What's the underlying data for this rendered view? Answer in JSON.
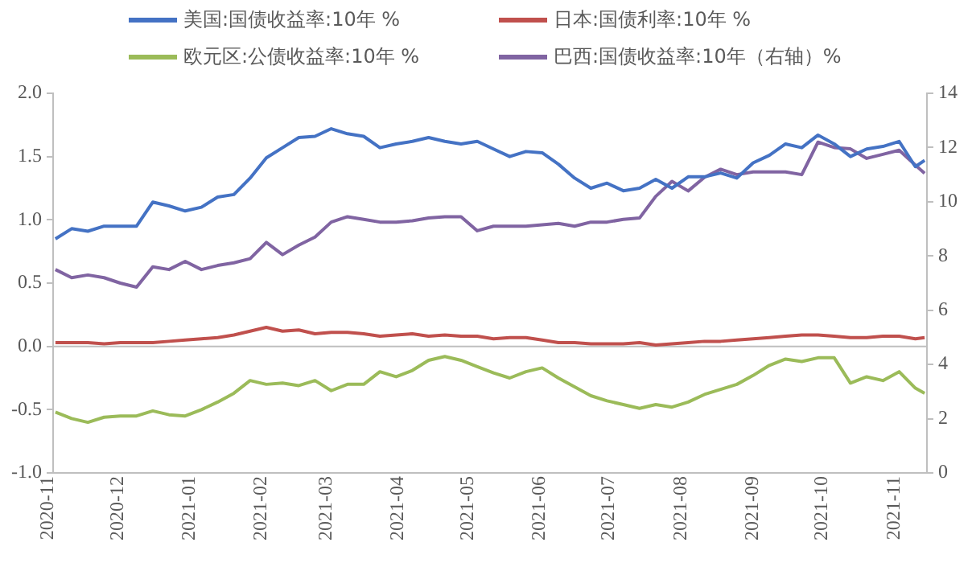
{
  "chart_data": {
    "type": "line",
    "legend": "top",
    "grid": false,
    "marker": "none",
    "line_style": "solid",
    "xlim": [
      "2020-11-01",
      "2021-11-13"
    ],
    "xticks": [
      "2020-11",
      "2020-12",
      "2021-01",
      "2021-02",
      "2021-03",
      "2021-04",
      "2021-05",
      "2021-06",
      "2021-07",
      "2021-08",
      "2021-09",
      "2021-10",
      "2021-11"
    ],
    "ylim": [
      -1,
      2
    ],
    "yticks": [
      {
        "value": -1,
        "label": "-1.0"
      },
      {
        "value": -0.5,
        "label": "-0.5"
      },
      {
        "value": 0,
        "label": "0.0"
      },
      {
        "value": 0.5,
        "label": "0.5"
      },
      {
        "value": 1,
        "label": "1.0"
      },
      {
        "value": 1.5,
        "label": "1.5"
      },
      {
        "value": 2,
        "label": "2.0"
      }
    ],
    "ref_lines": [
      {
        "axis": "y",
        "value": 0,
        "color": "#bfbfbf"
      }
    ],
    "y2lim": [
      0,
      14
    ],
    "y2ticks": [
      0,
      2,
      4,
      6,
      8,
      10,
      12,
      14
    ],
    "x": [
      "2020-11-02",
      "2020-11-09",
      "2020-11-16",
      "2020-11-23",
      "2020-11-30",
      "2020-12-07",
      "2020-12-14",
      "2020-12-21",
      "2020-12-28",
      "2021-01-04",
      "2021-01-11",
      "2021-01-18",
      "2021-01-25",
      "2021-02-01",
      "2021-02-08",
      "2021-02-15",
      "2021-02-22",
      "2021-03-01",
      "2021-03-08",
      "2021-03-15",
      "2021-03-22",
      "2021-03-29",
      "2021-04-05",
      "2021-04-12",
      "2021-04-19",
      "2021-04-26",
      "2021-05-03",
      "2021-05-10",
      "2021-05-17",
      "2021-05-24",
      "2021-05-31",
      "2021-06-07",
      "2021-06-14",
      "2021-06-21",
      "2021-06-28",
      "2021-07-05",
      "2021-07-12",
      "2021-07-19",
      "2021-07-26",
      "2021-08-02",
      "2021-08-09",
      "2021-08-16",
      "2021-08-23",
      "2021-08-30",
      "2021-09-06",
      "2021-09-13",
      "2021-09-20",
      "2021-09-27",
      "2021-10-04",
      "2021-10-11",
      "2021-10-18",
      "2021-10-25",
      "2021-11-01",
      "2021-11-08",
      "2021-11-12"
    ],
    "series": [
      {
        "name": "美国:国债收益率:10年 %",
        "color": "#4472c4",
        "values": [
          0.85,
          0.93,
          0.91,
          0.95,
          0.95,
          0.95,
          1.14,
          1.11,
          1.07,
          1.1,
          1.18,
          1.2,
          1.33,
          1.49,
          1.57,
          1.65,
          1.66,
          1.72,
          1.68,
          1.66,
          1.57,
          1.6,
          1.62,
          1.65,
          1.62,
          1.6,
          1.62,
          1.56,
          1.5,
          1.54,
          1.53,
          1.44,
          1.33,
          1.25,
          1.29,
          1.23,
          1.25,
          1.32,
          1.25,
          1.34,
          1.34,
          1.37,
          1.33,
          1.45,
          1.51,
          1.6,
          1.57,
          1.67,
          1.6,
          1.5,
          1.56,
          1.58,
          1.62,
          1.42,
          1.47
        ]
      },
      {
        "name": "日本:国债利率:10年 %",
        "color": "#c0504d",
        "values": [
          0.03,
          0.03,
          0.03,
          0.02,
          0.03,
          0.03,
          0.03,
          0.04,
          0.05,
          0.06,
          0.07,
          0.09,
          0.12,
          0.15,
          0.12,
          0.13,
          0.1,
          0.11,
          0.11,
          0.1,
          0.08,
          0.09,
          0.1,
          0.08,
          0.09,
          0.08,
          0.08,
          0.06,
          0.07,
          0.07,
          0.05,
          0.03,
          0.03,
          0.02,
          0.02,
          0.02,
          0.03,
          0.01,
          0.02,
          0.03,
          0.04,
          0.04,
          0.05,
          0.06,
          0.07,
          0.08,
          0.09,
          0.09,
          0.08,
          0.07,
          0.07,
          0.08,
          0.08,
          0.06,
          0.07
        ]
      },
      {
        "name": "欧元区:公债收益率:10年 %",
        "color": "#9bbb59",
        "values": [
          -0.52,
          -0.57,
          -0.6,
          -0.56,
          -0.55,
          -0.55,
          -0.51,
          -0.54,
          -0.55,
          -0.5,
          -0.44,
          -0.37,
          -0.27,
          -0.3,
          -0.29,
          -0.31,
          -0.27,
          -0.35,
          -0.3,
          -0.3,
          -0.2,
          -0.24,
          -0.19,
          -0.11,
          -0.08,
          -0.11,
          -0.16,
          -0.21,
          -0.25,
          -0.2,
          -0.17,
          -0.25,
          -0.32,
          -0.39,
          -0.43,
          -0.46,
          -0.49,
          -0.46,
          -0.48,
          -0.44,
          -0.38,
          -0.34,
          -0.3,
          -0.23,
          -0.15,
          -0.1,
          -0.12,
          -0.09,
          -0.09,
          -0.29,
          -0.24,
          -0.27,
          -0.2,
          -0.33,
          -0.37
        ]
      },
      {
        "name": "巴西:国债收益率:10年（右轴）%",
        "color": "#8064a2",
        "axis": "y2",
        "values": [
          7.5,
          7.2,
          7.3,
          7.2,
          7.0,
          6.85,
          7.6,
          7.5,
          7.8,
          7.5,
          7.65,
          7.75,
          7.9,
          8.5,
          8.05,
          8.4,
          8.7,
          9.25,
          9.45,
          9.35,
          9.25,
          9.25,
          9.3,
          9.4,
          9.45,
          9.45,
          8.93,
          9.1,
          9.1,
          9.1,
          9.15,
          9.2,
          9.1,
          9.25,
          9.25,
          9.35,
          9.4,
          10.2,
          10.75,
          10.4,
          10.9,
          11.2,
          11.0,
          11.1,
          11.1,
          11.1,
          11.0,
          12.2,
          12.0,
          11.95,
          11.6,
          11.75,
          11.9,
          11.35,
          11.05
        ]
      }
    ]
  }
}
